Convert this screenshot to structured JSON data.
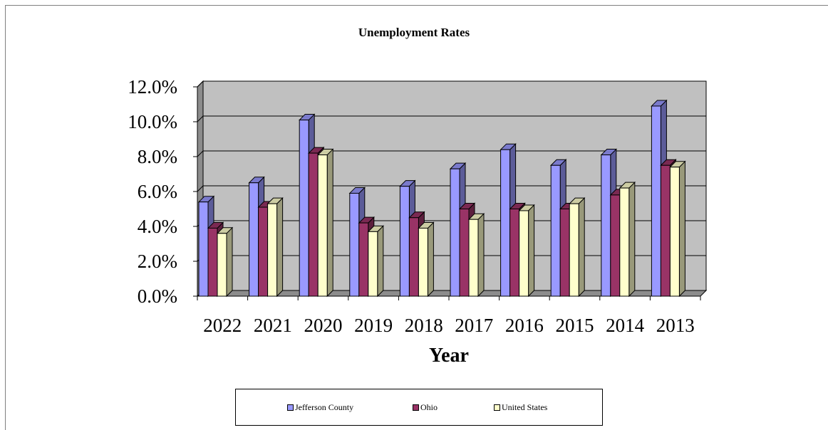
{
  "chart_data": {
    "type": "bar",
    "title": "Unemployment Rates",
    "xlabel": "Year",
    "ylabel": "",
    "ylim": [
      0,
      12
    ],
    "yticks": [
      "0.0%",
      "2.0%",
      "4.0%",
      "6.0%",
      "8.0%",
      "10.0%",
      "12.0%"
    ],
    "categories": [
      "2022",
      "2021",
      "2020",
      "2019",
      "2018",
      "2017",
      "2016",
      "2015",
      "2014",
      "2013"
    ],
    "series": [
      {
        "name": "Jefferson County",
        "color": "#9999ff",
        "values": [
          5.4,
          6.5,
          10.1,
          5.9,
          6.3,
          7.3,
          8.4,
          7.5,
          8.1,
          10.9
        ]
      },
      {
        "name": "Ohio",
        "color": "#993366",
        "values": [
          3.9,
          5.1,
          8.2,
          4.2,
          4.5,
          5.0,
          5.0,
          5.0,
          5.8,
          7.5
        ]
      },
      {
        "name": "United States",
        "color": "#ffffcc",
        "values": [
          3.6,
          5.3,
          8.1,
          3.7,
          3.9,
          4.4,
          4.9,
          5.3,
          6.2,
          7.4
        ]
      }
    ],
    "grid": true,
    "legend_position": "bottom",
    "plot_background": "#c0c0c0"
  }
}
